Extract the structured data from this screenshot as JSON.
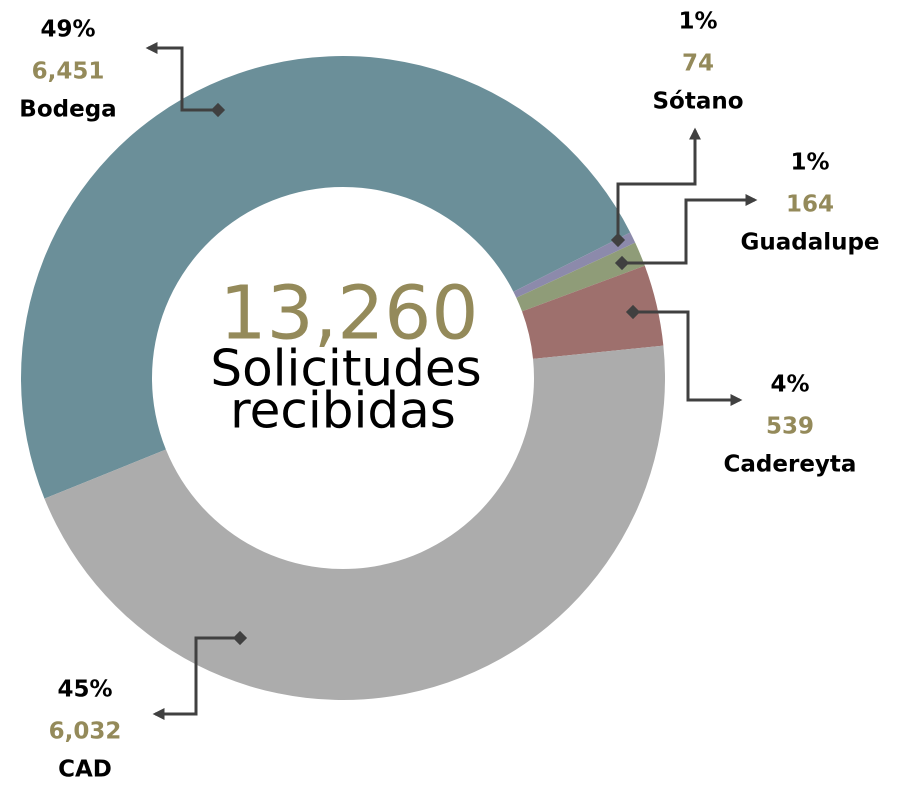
{
  "chart_data": {
    "type": "donut",
    "categories": [
      "Bodega",
      "Sótano",
      "Guadalupe",
      "Cadereyta",
      "CAD"
    ],
    "values": [
      6451,
      74,
      164,
      539,
      6032
    ],
    "value_labels": [
      "6,451",
      "74",
      "164",
      "539",
      "6,032"
    ],
    "percent_labels": [
      "49%",
      "1%",
      "1%",
      "4%",
      "45%"
    ],
    "colors": [
      "#6b8f99",
      "#8c8aab",
      "#8f9c78",
      "#9e706d",
      "#acacac"
    ],
    "total_label": "13,260",
    "center_text": [
      "Solicitudes",
      "recibidas"
    ]
  }
}
